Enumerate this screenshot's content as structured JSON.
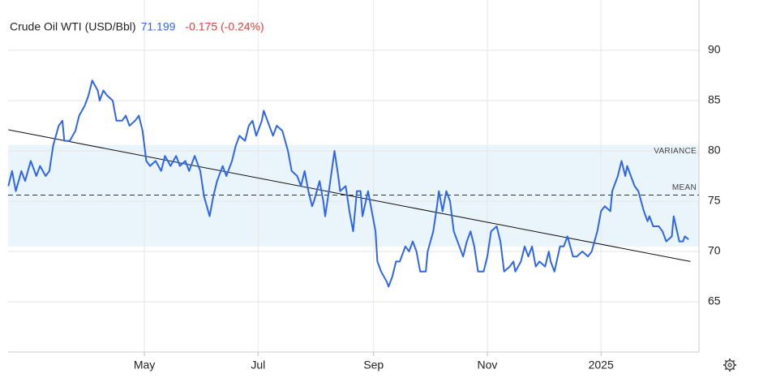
{
  "chart_data": {
    "type": "line",
    "series": [
      {
        "name": "Crude Oil WTI (USD/Bbl)",
        "color": "#2f66e8",
        "x": [
          1,
          3,
          5,
          8,
          10,
          13,
          16,
          18,
          21,
          23,
          25,
          28,
          30,
          31,
          34,
          37,
          39,
          42,
          44,
          46,
          49,
          50,
          52,
          54,
          57,
          59,
          62,
          64,
          66,
          69,
          71,
          73,
          75,
          77,
          80,
          83,
          85,
          88,
          91,
          93,
          96,
          98,
          101,
          104,
          106,
          109,
          111,
          113,
          116,
          118,
          121,
          123,
          125,
          128,
          130,
          132,
          134,
          137,
          138,
          140,
          143,
          145,
          148,
          151,
          153,
          156,
          158,
          160,
          162,
          164,
          165,
          168,
          170,
          171,
          173,
          176,
          178,
          179,
          182,
          184,
          186,
          188,
          190,
          191,
          194,
          196,
          198,
          199,
          201,
          204,
          205,
          207,
          209,
          211,
          214,
          216,
          218,
          220,
          222,
          225,
          226,
          229,
          231,
          232,
          234,
          236,
          238,
          240,
          243,
          245,
          247,
          249,
          251,
          253,
          256,
          258,
          260,
          263,
          265,
          267,
          270,
          272,
          273,
          276,
          278,
          280,
          282,
          284,
          286,
          289,
          291,
          292,
          294,
          297,
          299,
          301,
          304,
          306,
          309,
          312,
          314,
          317,
          319,
          321,
          324,
          325,
          328,
          330,
          332,
          333,
          335,
          337,
          339,
          342,
          344,
          345,
          347,
          350,
          352,
          354,
          357,
          358,
          361,
          363,
          364,
          366
        ],
        "values": [
          76.5,
          78,
          76,
          78,
          77,
          79,
          77.5,
          78.5,
          77.5,
          78,
          80.5,
          82.5,
          83,
          81,
          81,
          82,
          83.5,
          84.5,
          85.5,
          87,
          86,
          85,
          86,
          85.5,
          85,
          83,
          83,
          83.5,
          82.5,
          83,
          83.5,
          82,
          79,
          78.5,
          79,
          78,
          79.5,
          78.5,
          79.5,
          78.5,
          79,
          78,
          79.5,
          78,
          75.5,
          73.5,
          75.5,
          77,
          78.5,
          77.5,
          79,
          80.5,
          81.5,
          81,
          82.5,
          83,
          81.5,
          83,
          84,
          83,
          81.5,
          82.5,
          82,
          80,
          78,
          77.5,
          76.5,
          78,
          76,
          74.5,
          75,
          77,
          75,
          73.5,
          76,
          80,
          77.5,
          76,
          76.5,
          74,
          72,
          76,
          76,
          73.5,
          76,
          74,
          72,
          69,
          68,
          67,
          66.5,
          67.5,
          69,
          69,
          70.5,
          70,
          71,
          70,
          68,
          68,
          70,
          72,
          74.5,
          76,
          74,
          76,
          75,
          72,
          70.5,
          69.5,
          71,
          72,
          70.5,
          68,
          68,
          69.5,
          72,
          72.5,
          71,
          68,
          68.5,
          69,
          68,
          69,
          70.5,
          69.5,
          70.5,
          68.5,
          69,
          68.5,
          70,
          69,
          68,
          70.5,
          70.5,
          71.5,
          69.5,
          69.5,
          70,
          69.5,
          70,
          72,
          74,
          74.5,
          74,
          76,
          77.5,
          79,
          77.5,
          78.5,
          77.5,
          76.5,
          76,
          74,
          73,
          73.5,
          72.5,
          72.5,
          72,
          71,
          71.5,
          73.5,
          71,
          71,
          71.5,
          71.2
        ]
      }
    ],
    "last_value": 71.199,
    "change": "-0.175 (-0.24%)",
    "trend": {
      "color": "#111111",
      "x": [
        1,
        367
      ],
      "values": [
        82.1,
        69.0
      ]
    },
    "band": {
      "label": "VARIANCE",
      "color": "#eaf4fb",
      "values": [
        70.5,
        80.6
      ]
    },
    "mean": {
      "label": "MEAN",
      "value": 75.6
    },
    "xlim": [
      0,
      372
    ],
    "xticks": [
      {
        "value": 74,
        "label": "May"
      },
      {
        "value": 135,
        "label": "Jul"
      },
      {
        "value": 197,
        "label": "Sep"
      },
      {
        "value": 258,
        "label": "Nov"
      },
      {
        "value": 319,
        "label": "2025"
      }
    ],
    "ylim": [
      60,
      95
    ],
    "yticks": [
      65,
      70,
      75,
      80,
      85,
      90
    ],
    "grid": true
  }
}
